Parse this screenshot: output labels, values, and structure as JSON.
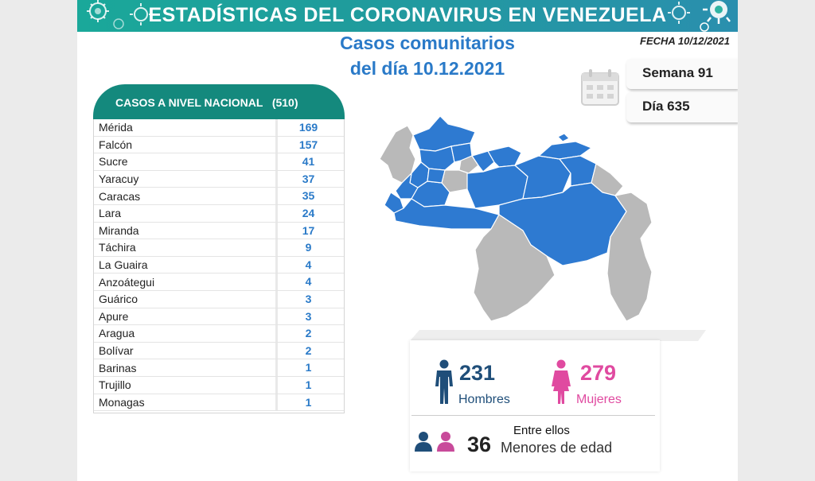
{
  "header": {
    "title": "ESTADÍSTICAS DEL CORONAVIRUS EN VENEZUELA",
    "subtitle_line1": "Casos comunitarios",
    "subtitle_line2": "del día 10.12.2021",
    "fecha": "FECHA 10/12/2021"
  },
  "week": "Semana 91",
  "day": "Día 635",
  "national": {
    "label": "CASOS A NIVEL NACIONAL",
    "total": "(510)",
    "rows": [
      {
        "state": "Mérida",
        "count": "169"
      },
      {
        "state": "Falcón",
        "count": "157"
      },
      {
        "state": "Sucre",
        "count": "41"
      },
      {
        "state": "Yaracuy",
        "count": "37"
      },
      {
        "state": "Caracas",
        "count": "35"
      },
      {
        "state": "Lara",
        "count": "24"
      },
      {
        "state": "Miranda",
        "count": "17"
      },
      {
        "state": "Táchira",
        "count": "9"
      },
      {
        "state": "La Guaira",
        "count": "4"
      },
      {
        "state": "Anzoátegui",
        "count": "4"
      },
      {
        "state": "Guárico",
        "count": "3"
      },
      {
        "state": "Apure",
        "count": "3"
      },
      {
        "state": "Aragua",
        "count": "2"
      },
      {
        "state": "Bolívar",
        "count": "2"
      },
      {
        "state": "Barinas",
        "count": "1"
      },
      {
        "state": "Trujillo",
        "count": "1"
      },
      {
        "state": "Monagas",
        "count": "1"
      }
    ]
  },
  "sex": {
    "men_count": "231",
    "men_label": "Hombres",
    "women_count": "279",
    "women_label": "Mujeres"
  },
  "minors": {
    "intro": "Entre ellos",
    "count": "36",
    "label": "Menores de edad"
  },
  "colors": {
    "banner": "#1aa89a",
    "table_header": "#14897d",
    "accent_blue": "#2a7ac8",
    "map_active": "#2e7ad1",
    "map_inactive": "#b9b9b9",
    "men": "#1f4e79",
    "women": "#e04aa0"
  },
  "icons": [
    "virus-icon",
    "calendar-icon",
    "man-icon",
    "woman-icon",
    "family-icon"
  ]
}
